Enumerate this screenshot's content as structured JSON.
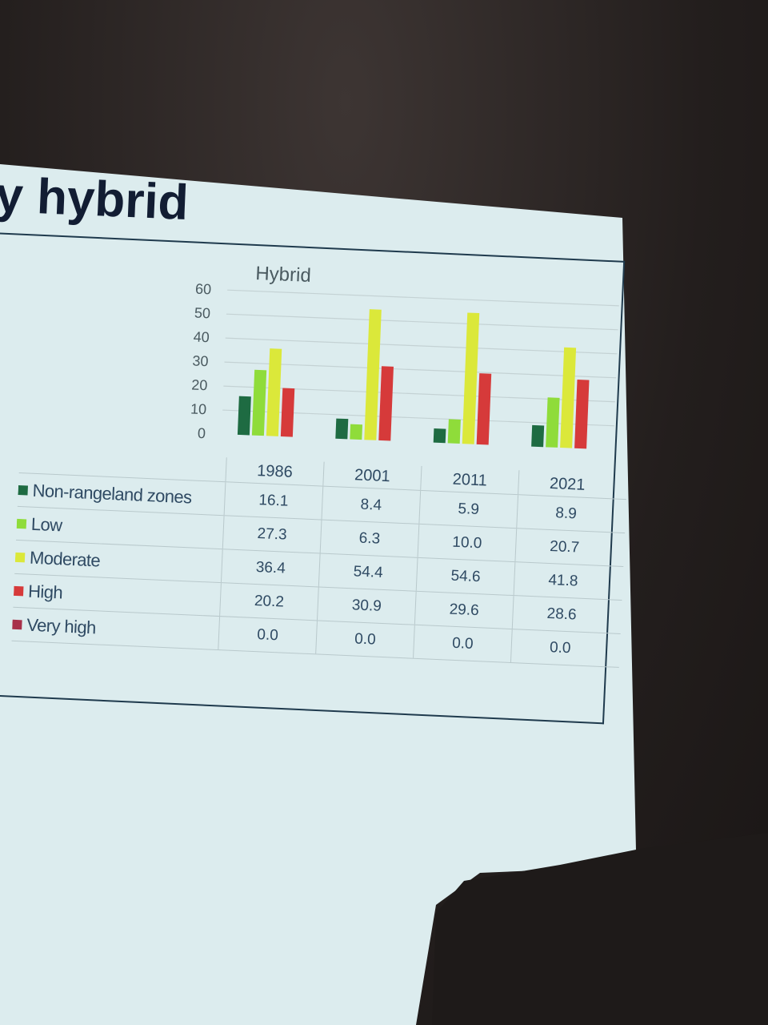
{
  "slide": {
    "title": "y hybrid"
  },
  "chart_data": {
    "type": "bar",
    "title": "Hybrid",
    "categories": [
      "1986",
      "2001",
      "2011",
      "2021"
    ],
    "series": [
      {
        "name": "Non-rangeland zones",
        "color": "#1e6b42",
        "values": [
          16.1,
          8.4,
          5.9,
          8.9
        ]
      },
      {
        "name": "Low",
        "color": "#8fdc3a",
        "values": [
          27.3,
          6.3,
          10.0,
          20.7
        ]
      },
      {
        "name": "Moderate",
        "color": "#dbe83a",
        "values": [
          36.4,
          54.4,
          54.6,
          41.8
        ]
      },
      {
        "name": "High",
        "color": "#d63a3a",
        "values": [
          20.2,
          30.9,
          29.6,
          28.6
        ]
      },
      {
        "name": "Very high",
        "color": "#a8304a",
        "values": [
          0.0,
          0.0,
          0.0,
          0.0
        ]
      }
    ],
    "table_values": [
      [
        "16.1",
        "8.4",
        "5.9",
        "8.9"
      ],
      [
        "27.3",
        "6.3",
        "10.0",
        "20.7"
      ],
      [
        "36.4",
        "54.4",
        "54.6",
        "41.8"
      ],
      [
        "20.2",
        "30.9",
        "29.6",
        "28.6"
      ],
      [
        "0.0",
        "0.0",
        "0.0",
        "0.0"
      ]
    ],
    "yticks": [
      "60",
      "50",
      "40",
      "30",
      "20",
      "10",
      "0"
    ],
    "ylim": [
      0,
      60
    ],
    "grid": true,
    "legend": "data-table-left"
  }
}
